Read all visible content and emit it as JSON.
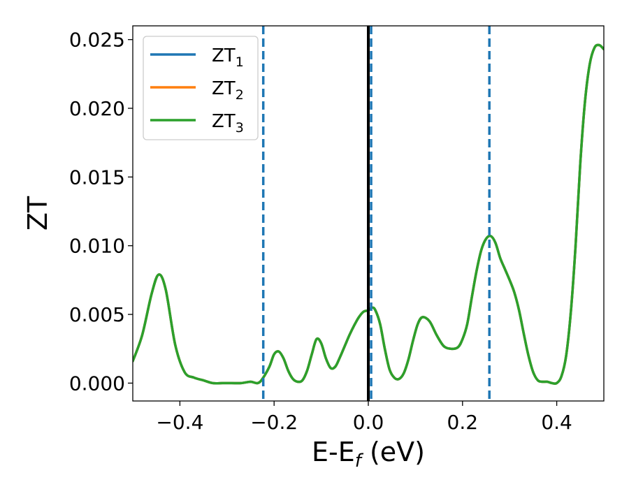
{
  "chart_data": {
    "type": "line",
    "title": "",
    "xlabel": "E-E",
    "xlabel_sub": "f",
    "xlabel_unit": " (eV)",
    "ylabel": "ZT",
    "xlim": [
      -0.5,
      0.5
    ],
    "ylim": [
      -0.0013,
      0.026
    ],
    "x_ticks": [
      -0.4,
      -0.2,
      0.0,
      0.2,
      0.4
    ],
    "x_tick_labels": [
      "−0.4",
      "−0.2",
      "0.0",
      "0.2",
      "0.4"
    ],
    "y_ticks": [
      0.0,
      0.005,
      0.01,
      0.015,
      0.02,
      0.025
    ],
    "y_tick_labels": [
      "0.000",
      "0.005",
      "0.010",
      "0.015",
      "0.020",
      "0.025"
    ],
    "grid": false,
    "legend_position": "top-left",
    "x": [
      -0.5,
      -0.48,
      -0.46,
      -0.445,
      -0.43,
      -0.41,
      -0.39,
      -0.37,
      -0.35,
      -0.33,
      -0.31,
      -0.29,
      -0.27,
      -0.25,
      -0.235,
      -0.225,
      -0.21,
      -0.2,
      -0.19,
      -0.18,
      -0.17,
      -0.16,
      -0.15,
      -0.14,
      -0.13,
      -0.12,
      -0.11,
      -0.1,
      -0.09,
      -0.08,
      -0.07,
      -0.06,
      -0.05,
      -0.04,
      -0.03,
      -0.02,
      -0.01,
      0.0,
      0.008,
      0.015,
      0.025,
      0.035,
      0.045,
      0.055,
      0.065,
      0.075,
      0.085,
      0.095,
      0.105,
      0.115,
      0.13,
      0.145,
      0.16,
      0.175,
      0.19,
      0.2,
      0.21,
      0.22,
      0.23,
      0.24,
      0.25,
      0.26,
      0.27,
      0.28,
      0.29,
      0.3,
      0.31,
      0.32,
      0.33,
      0.34,
      0.35,
      0.36,
      0.37,
      0.38,
      0.39,
      0.4,
      0.41,
      0.42,
      0.43,
      0.44,
      0.45,
      0.46,
      0.47,
      0.48,
      0.49,
      0.5
    ],
    "series": [
      {
        "name": "ZT",
        "sub": "1",
        "color": "#1f77b4",
        "values": [
          0.0016,
          0.0035,
          0.0065,
          0.0079,
          0.0068,
          0.0028,
          0.0008,
          0.0004,
          0.0002,
          0.0,
          0.0,
          0.0,
          0.0,
          0.0001,
          0.0,
          0.0003,
          0.0012,
          0.0021,
          0.0023,
          0.0018,
          0.0009,
          0.0003,
          0.0001,
          0.0002,
          0.0009,
          0.0021,
          0.0032,
          0.0029,
          0.0018,
          0.0011,
          0.0012,
          0.0019,
          0.0027,
          0.0035,
          0.0042,
          0.0048,
          0.0052,
          0.0053,
          0.0055,
          0.0053,
          0.0043,
          0.0025,
          0.001,
          0.0004,
          0.0003,
          0.0007,
          0.0017,
          0.0031,
          0.0043,
          0.0048,
          0.0045,
          0.0035,
          0.0027,
          0.0025,
          0.0026,
          0.0032,
          0.0043,
          0.0063,
          0.0082,
          0.0097,
          0.0105,
          0.0107,
          0.0102,
          0.0091,
          0.0083,
          0.0075,
          0.0066,
          0.0053,
          0.0036,
          0.002,
          0.0008,
          0.0002,
          0.0001,
          0.0001,
          0.0,
          0.0,
          0.0005,
          0.002,
          0.0052,
          0.01,
          0.016,
          0.0205,
          0.0232,
          0.0244,
          0.0246,
          0.0243
        ]
      },
      {
        "name": "ZT",
        "sub": "2",
        "color": "#ff7f0e",
        "values": [
          0.0016,
          0.0035,
          0.0065,
          0.0079,
          0.0068,
          0.0028,
          0.0008,
          0.0004,
          0.0002,
          0.0,
          0.0,
          0.0,
          0.0,
          0.0001,
          0.0,
          0.0003,
          0.0012,
          0.0021,
          0.0023,
          0.0018,
          0.0009,
          0.0003,
          0.0001,
          0.0002,
          0.0009,
          0.0021,
          0.0032,
          0.0029,
          0.0018,
          0.0011,
          0.0012,
          0.0019,
          0.0027,
          0.0035,
          0.0042,
          0.0048,
          0.0052,
          0.0053,
          0.0055,
          0.0053,
          0.0043,
          0.0025,
          0.001,
          0.0004,
          0.0003,
          0.0007,
          0.0017,
          0.0031,
          0.0043,
          0.0048,
          0.0045,
          0.0035,
          0.0027,
          0.0025,
          0.0026,
          0.0032,
          0.0043,
          0.0063,
          0.0082,
          0.0097,
          0.0105,
          0.0107,
          0.0102,
          0.0091,
          0.0083,
          0.0075,
          0.0066,
          0.0053,
          0.0036,
          0.002,
          0.0008,
          0.0002,
          0.0001,
          0.0001,
          0.0,
          0.0,
          0.0005,
          0.002,
          0.0052,
          0.01,
          0.016,
          0.0205,
          0.0232,
          0.0244,
          0.0246,
          0.0243
        ]
      },
      {
        "name": "ZT",
        "sub": "3",
        "color": "#2ca02c",
        "values": [
          0.0016,
          0.0035,
          0.0065,
          0.0079,
          0.0068,
          0.0028,
          0.0008,
          0.0004,
          0.0002,
          0.0,
          0.0,
          0.0,
          0.0,
          0.0001,
          0.0,
          0.0003,
          0.0012,
          0.0021,
          0.0023,
          0.0018,
          0.0009,
          0.0003,
          0.0001,
          0.0002,
          0.0009,
          0.0021,
          0.0032,
          0.0029,
          0.0018,
          0.0011,
          0.0012,
          0.0019,
          0.0027,
          0.0035,
          0.0042,
          0.0048,
          0.0052,
          0.0053,
          0.0055,
          0.0053,
          0.0043,
          0.0025,
          0.001,
          0.0004,
          0.0003,
          0.0007,
          0.0017,
          0.0031,
          0.0043,
          0.0048,
          0.0045,
          0.0035,
          0.0027,
          0.0025,
          0.0026,
          0.0032,
          0.0043,
          0.0063,
          0.0082,
          0.0097,
          0.0105,
          0.0107,
          0.0102,
          0.0091,
          0.0083,
          0.0075,
          0.0066,
          0.0053,
          0.0036,
          0.002,
          0.0008,
          0.0002,
          0.0001,
          0.0001,
          0.0,
          0.0,
          0.0005,
          0.002,
          0.0052,
          0.01,
          0.016,
          0.0205,
          0.0232,
          0.0244,
          0.0246,
          0.0243
        ]
      }
    ],
    "vlines_dashed": {
      "color": "#1f77b4",
      "x": [
        -0.223,
        0.006,
        0.257
      ]
    },
    "vline_solid": {
      "color": "#000000",
      "x": 0.0
    }
  }
}
